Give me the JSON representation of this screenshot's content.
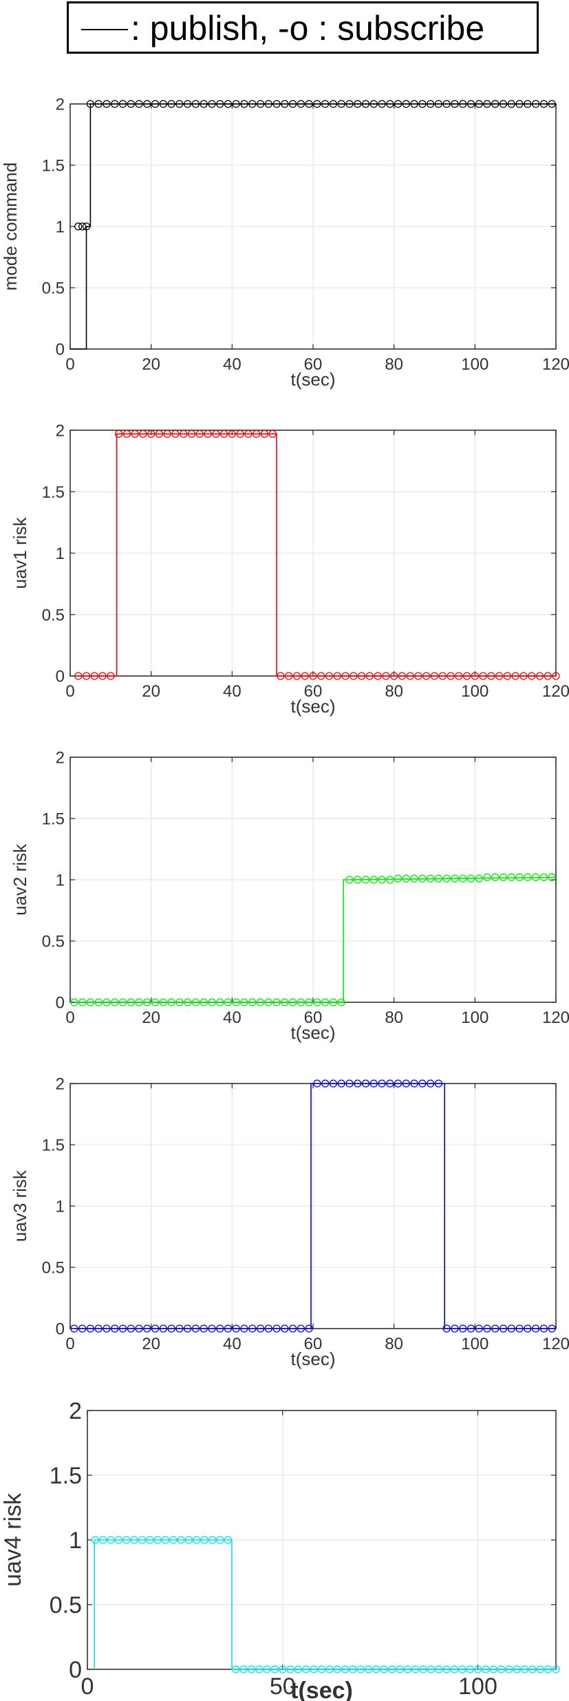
{
  "legend": {
    "text": "—: publish, -o : subscribe",
    "label": ": publish, -o : subscribe"
  },
  "chart_data": [
    {
      "type": "line",
      "ylabel": "mode command",
      "xlabel": "t(sec)",
      "xlim": [
        0,
        120
      ],
      "ylim": [
        0,
        2
      ],
      "xticks": [
        0,
        20,
        40,
        60,
        80,
        100,
        120
      ],
      "yticks": [
        0,
        0.5,
        1,
        1.5,
        2
      ],
      "grid": true,
      "color": "#000000",
      "series": [
        {
          "kind": "publish",
          "x": [
            0,
            4,
            4,
            5,
            5,
            120
          ],
          "y": [
            0,
            0,
            1,
            1,
            2,
            2
          ]
        },
        {
          "kind": "subscribe",
          "x": [
            2,
            3,
            4,
            5,
            7,
            9,
            11,
            13,
            15,
            17,
            19,
            21,
            23,
            25,
            27,
            29,
            31,
            33,
            35,
            37,
            39,
            41,
            43,
            45,
            47,
            49,
            51,
            53,
            55,
            57,
            59,
            61,
            63,
            65,
            67,
            69,
            71,
            73,
            75,
            77,
            79,
            81,
            83,
            85,
            87,
            89,
            91,
            93,
            95,
            97,
            99,
            101,
            103,
            105,
            107,
            109,
            111,
            113,
            115,
            117,
            119
          ],
          "y": [
            1,
            1,
            1,
            2,
            2,
            2,
            2,
            2,
            2,
            2,
            2,
            2,
            2,
            2,
            2,
            2,
            2,
            2,
            2,
            2,
            2,
            2,
            2,
            2,
            2,
            2,
            2,
            2,
            2,
            2,
            2,
            2,
            2,
            2,
            2,
            2,
            2,
            2,
            2,
            2,
            2,
            2,
            2,
            2,
            2,
            2,
            2,
            2,
            2,
            2,
            2,
            2,
            2,
            2,
            2,
            2,
            2,
            2,
            2,
            2,
            2
          ]
        }
      ]
    },
    {
      "type": "line",
      "ylabel": "uav1 risk",
      "xlabel": "t(sec)",
      "xlim": [
        0,
        120
      ],
      "ylim": [
        0,
        2
      ],
      "xticks": [
        0,
        20,
        40,
        60,
        80,
        100,
        120
      ],
      "yticks": [
        0,
        0.5,
        1,
        1.5,
        2
      ],
      "grid": true,
      "color": "#ff0000",
      "series": [
        {
          "kind": "publish",
          "x": [
            2,
            11.5,
            11.5,
            51,
            51,
            120
          ],
          "y": [
            0,
            0,
            1.97,
            1.97,
            0,
            0
          ]
        },
        {
          "kind": "subscribe",
          "x": [
            2,
            4,
            6,
            8,
            10,
            12,
            14,
            16,
            18,
            20,
            22,
            24,
            26,
            28,
            30,
            32,
            34,
            36,
            38,
            40,
            42,
            44,
            46,
            48,
            50,
            52,
            54,
            56,
            58,
            60,
            62,
            64,
            66,
            68,
            70,
            72,
            74,
            76,
            78,
            80,
            82,
            84,
            86,
            88,
            90,
            92,
            94,
            96,
            98,
            100,
            102,
            104,
            106,
            108,
            110,
            112,
            114,
            116,
            118,
            120
          ],
          "y": [
            0,
            0,
            0,
            0,
            0,
            1.97,
            1.97,
            1.97,
            1.97,
            1.97,
            1.97,
            1.97,
            1.97,
            1.97,
            1.97,
            1.97,
            1.97,
            1.97,
            1.97,
            1.97,
            1.97,
            1.97,
            1.97,
            1.97,
            1.97,
            0,
            0,
            0,
            0,
            0,
            0,
            0,
            0,
            0,
            0,
            0,
            0,
            0,
            0,
            0,
            0,
            0,
            0,
            0,
            0,
            0,
            0,
            0,
            0,
            0,
            0,
            0,
            0,
            0,
            0,
            0,
            0,
            0,
            0,
            0
          ]
        }
      ]
    },
    {
      "type": "line",
      "ylabel": "uav2 risk",
      "xlabel": "t(sec)",
      "xlim": [
        0,
        120
      ],
      "ylim": [
        0,
        2
      ],
      "xticks": [
        0,
        20,
        40,
        60,
        80,
        100,
        120
      ],
      "yticks": [
        0,
        0.5,
        1,
        1.5,
        2
      ],
      "grid": true,
      "color": "#00ee00",
      "series": [
        {
          "kind": "publish",
          "x": [
            1,
            67.5,
            67.5,
            120
          ],
          "y": [
            0,
            0,
            1,
            1.02
          ]
        },
        {
          "kind": "subscribe",
          "x": [
            1,
            3,
            5,
            7,
            9,
            11,
            13,
            15,
            17,
            19,
            21,
            23,
            25,
            27,
            29,
            31,
            33,
            35,
            37,
            39,
            41,
            43,
            45,
            47,
            49,
            51,
            53,
            55,
            57,
            59,
            61,
            63,
            65,
            67,
            69,
            71,
            73,
            75,
            77,
            79,
            81,
            83,
            85,
            87,
            89,
            91,
            93,
            95,
            97,
            99,
            101,
            103,
            105,
            107,
            109,
            111,
            113,
            115,
            117,
            119
          ],
          "y": [
            0,
            0,
            0,
            0,
            0,
            0,
            0,
            0,
            0,
            0,
            0,
            0,
            0,
            0,
            0,
            0,
            0,
            0,
            0,
            0,
            0,
            0,
            0,
            0,
            0,
            0,
            0,
            0,
            0,
            0,
            0,
            0,
            0,
            0,
            1,
            1,
            1,
            1,
            1,
            1,
            1.01,
            1.01,
            1.01,
            1.01,
            1.01,
            1.01,
            1.01,
            1.01,
            1.01,
            1.01,
            1.01,
            1.02,
            1.02,
            1.02,
            1.02,
            1.02,
            1.02,
            1.02,
            1.02,
            1.02
          ]
        }
      ]
    },
    {
      "type": "line",
      "ylabel": "uav3 risk",
      "xlabel": "t(sec)",
      "xlim": [
        0,
        120
      ],
      "ylim": [
        0,
        2
      ],
      "xticks": [
        0,
        20,
        40,
        60,
        80,
        100,
        120
      ],
      "yticks": [
        0,
        0.5,
        1,
        1.5,
        2
      ],
      "grid": true,
      "color": "#0000ee",
      "series": [
        {
          "kind": "publish",
          "x": [
            1,
            59.5,
            59.5,
            92.5,
            92.5,
            120
          ],
          "y": [
            0,
            0,
            2,
            2,
            0,
            0
          ]
        },
        {
          "kind": "subscribe",
          "x": [
            1,
            3,
            5,
            7,
            9,
            11,
            13,
            15,
            17,
            19,
            21,
            23,
            25,
            27,
            29,
            31,
            33,
            35,
            37,
            39,
            41,
            43,
            45,
            47,
            49,
            51,
            53,
            55,
            57,
            59,
            61,
            63,
            65,
            67,
            69,
            71,
            73,
            75,
            77,
            79,
            81,
            83,
            85,
            87,
            89,
            91,
            93,
            95,
            97,
            99,
            101,
            103,
            105,
            107,
            109,
            111,
            113,
            115,
            117,
            119
          ],
          "y": [
            0,
            0,
            0,
            0,
            0,
            0,
            0,
            0,
            0,
            0,
            0,
            0,
            0,
            0,
            0,
            0,
            0,
            0,
            0,
            0,
            0,
            0,
            0,
            0,
            0,
            0,
            0,
            0,
            0,
            0,
            2,
            2,
            2,
            2,
            2,
            2,
            2,
            2,
            2,
            2,
            2,
            2,
            2,
            2,
            2,
            2,
            0,
            0,
            0,
            0,
            0,
            0,
            0,
            0,
            0,
            0,
            0,
            0,
            0,
            0
          ]
        }
      ]
    },
    {
      "type": "line",
      "ylabel": "uav4 risk",
      "xlabel": "t(sec)",
      "xlim": [
        0,
        120
      ],
      "ylim": [
        0,
        2
      ],
      "xticks": [
        0,
        50,
        100
      ],
      "yticks": [
        0,
        0.5,
        1,
        1.5,
        2
      ],
      "grid": true,
      "color": "#00e5ee",
      "series": [
        {
          "kind": "publish",
          "x": [
            1.8,
            1.8,
            37,
            37,
            120
          ],
          "y": [
            0,
            1,
            1,
            0,
            0
          ]
        },
        {
          "kind": "subscribe",
          "x": [
            2,
            4,
            6,
            8,
            10,
            12,
            14,
            16,
            18,
            20,
            22,
            24,
            26,
            28,
            30,
            32,
            34,
            36,
            38,
            40,
            42,
            44,
            46,
            48,
            50,
            52,
            54,
            56,
            58,
            60,
            62,
            64,
            66,
            68,
            70,
            72,
            74,
            76,
            78,
            80,
            82,
            84,
            86,
            88,
            90,
            92,
            94,
            96,
            98,
            100,
            102,
            104,
            106,
            108,
            110,
            112,
            114,
            116,
            118,
            120
          ],
          "y": [
            1,
            1,
            1,
            1,
            1,
            1,
            1,
            1,
            1,
            1,
            1,
            1,
            1,
            1,
            1,
            1,
            1,
            1,
            0,
            0,
            0,
            0,
            0,
            0,
            0,
            0,
            0,
            0,
            0,
            0,
            0,
            0,
            0,
            0,
            0,
            0,
            0,
            0,
            0,
            0,
            0,
            0,
            0,
            0,
            0,
            0,
            0,
            0,
            0,
            0,
            0,
            0,
            0,
            0,
            0,
            0,
            0,
            0,
            0,
            0
          ]
        }
      ]
    }
  ]
}
